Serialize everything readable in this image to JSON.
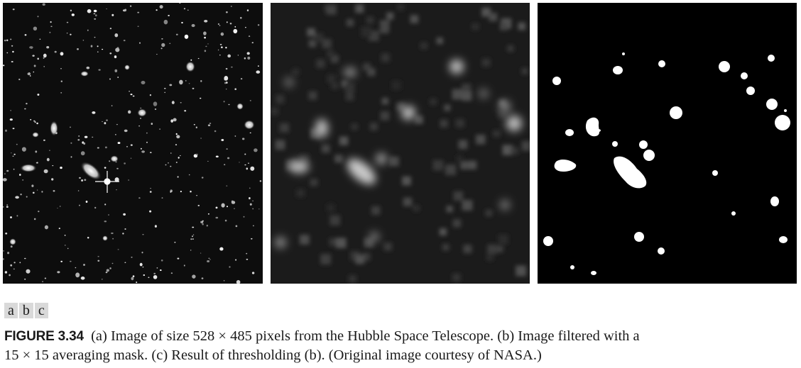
{
  "panel_labels": [
    "a",
    "b",
    "c"
  ],
  "caption": {
    "figure_number": "FIGURE 3.34",
    "line1": "(a) Image of size 528 × 485 pixels from the Hubble Space Telescope. (b) Image filtered with a",
    "line2": "15 × 15 averaging mask. (c) Result of thresholding (b). (Original image courtesy of NASA.)"
  },
  "panels": {
    "a": "Image of size 528 × 485 pixels from the Hubble Space Telescope",
    "b": "Image filtered with a 15 × 15 averaging mask",
    "c": "Result of thresholding (b)"
  }
}
